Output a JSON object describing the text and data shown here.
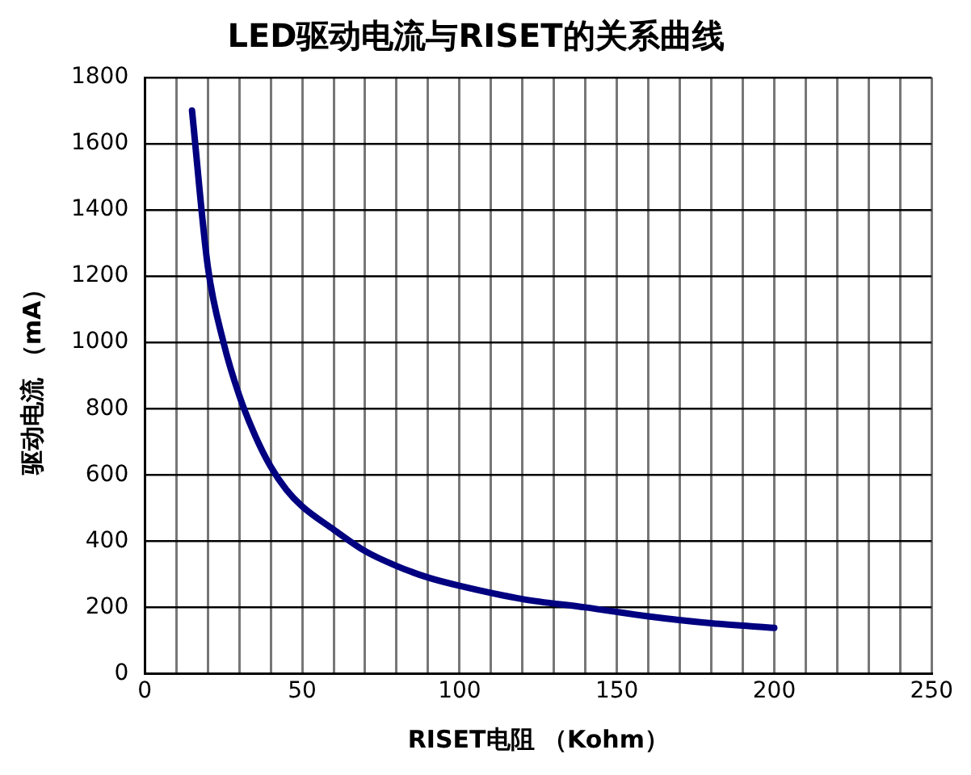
{
  "chart_data": {
    "type": "line",
    "title": "LED驱动电流与RISET的关系曲线",
    "xlabel": "RISET电阻 （Kohm）",
    "ylabel": "驱动电流 （mA）",
    "x": [
      15,
      20,
      25,
      30,
      35,
      40,
      45,
      50,
      60,
      70,
      80,
      90,
      100,
      120,
      140,
      160,
      180,
      200
    ],
    "series": [
      {
        "color": "#000080",
        "values": [
          1700,
          1230,
          1000,
          840,
          720,
          625,
          555,
          505,
          435,
          370,
          325,
          290,
          265,
          225,
          200,
          173,
          152,
          138
        ]
      }
    ],
    "xlim": [
      0,
      250
    ],
    "xticks": [
      0,
      {
        "value": 10,
        "label": null
      },
      {
        "value": 20,
        "label": null
      },
      {
        "value": 30,
        "label": null
      },
      {
        "value": 40,
        "label": null
      },
      50,
      {
        "value": 60,
        "label": null
      },
      {
        "value": 70,
        "label": null
      },
      {
        "value": 80,
        "label": null
      },
      {
        "value": 90,
        "label": null
      },
      100,
      {
        "value": 110,
        "label": null
      },
      {
        "value": 120,
        "label": null
      },
      {
        "value": 130,
        "label": null
      },
      {
        "value": 140,
        "label": null
      },
      150,
      {
        "value": 160,
        "label": null
      },
      {
        "value": 170,
        "label": null
      },
      {
        "value": 180,
        "label": null
      },
      {
        "value": 190,
        "label": null
      },
      200,
      {
        "value": 210,
        "label": null
      },
      {
        "value": 220,
        "label": null
      },
      {
        "value": 230,
        "label": null
      },
      {
        "value": 240,
        "label": null
      },
      250
    ],
    "ylim": [
      0,
      1800
    ],
    "yticks": [
      0,
      200,
      400,
      600,
      800,
      1000,
      1200,
      1400,
      1600,
      1800
    ],
    "grid": true,
    "legend": false,
    "marker": "none",
    "line_style": "solid"
  }
}
